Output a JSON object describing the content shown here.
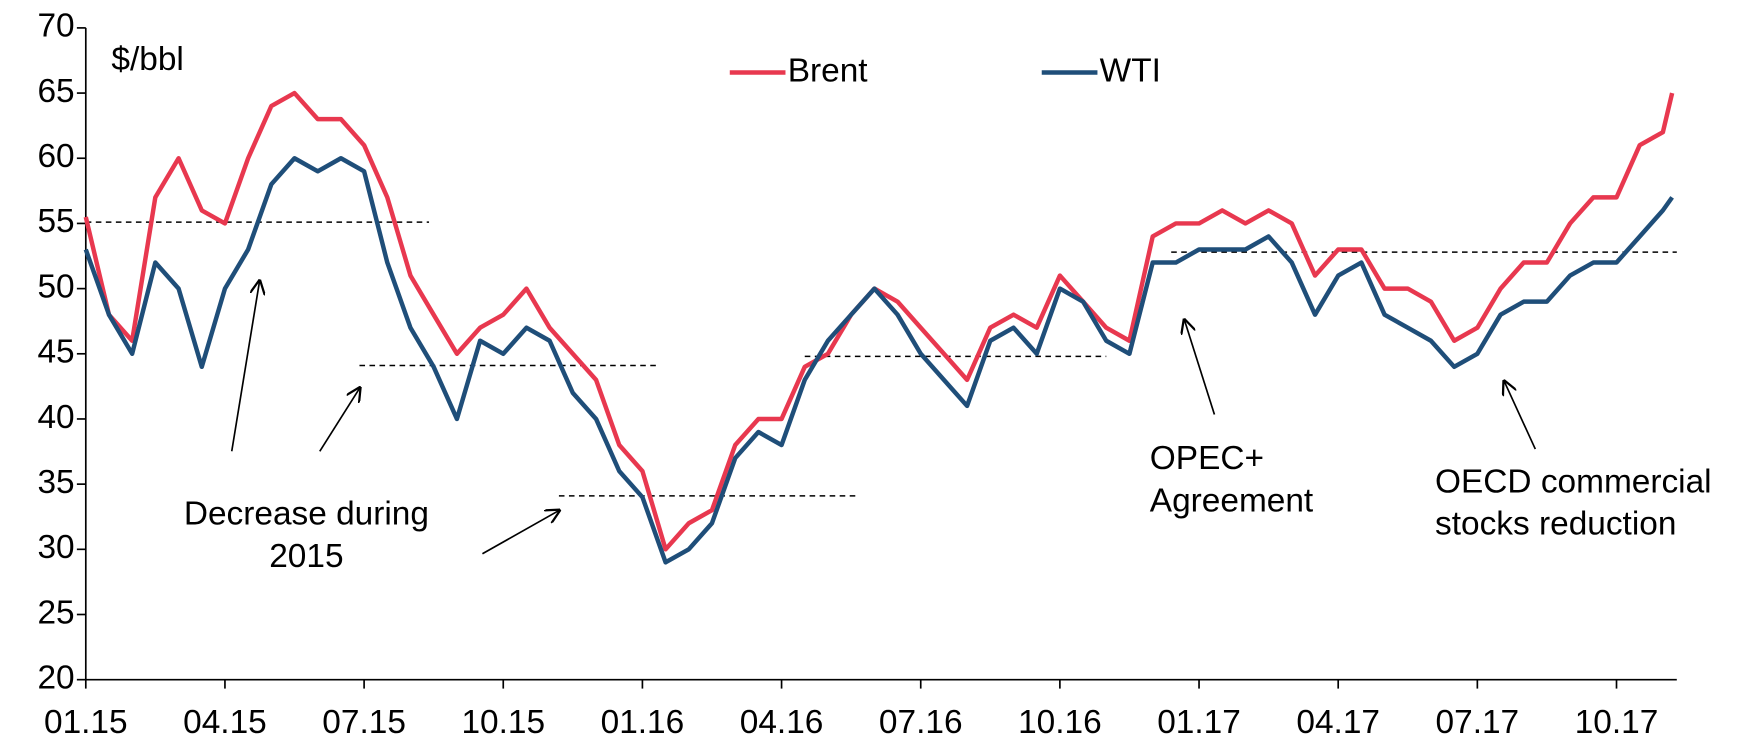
{
  "chart_data": {
    "type": "line",
    "y_label": "$/bbl",
    "x": [
      0,
      0.5,
      1,
      1.5,
      2,
      2.5,
      3,
      3.5,
      4,
      4.5,
      5,
      5.5,
      6,
      6.5,
      7,
      7.5,
      8,
      8.5,
      9,
      9.5,
      10,
      10.5,
      11,
      11.5,
      12,
      12.5,
      13,
      13.5,
      14,
      14.5,
      15,
      15.5,
      16,
      16.5,
      17,
      17.5,
      18,
      18.5,
      19,
      19.5,
      20,
      20.5,
      21,
      21.5,
      22,
      22.5,
      23,
      23.5,
      24,
      24.5,
      25,
      25.5,
      26,
      26.5,
      27,
      27.5,
      28,
      28.5,
      29,
      29.5,
      30,
      30.5,
      31,
      31.5,
      32,
      32.5,
      33,
      33.5,
      34,
      34.2
    ],
    "series": [
      {
        "name": "Brent",
        "color": "#e8384f",
        "values": [
          55.5,
          48,
          46,
          57,
          60,
          56,
          55,
          60,
          64,
          65,
          63,
          63,
          61,
          57,
          51,
          48,
          45,
          47,
          48,
          50,
          47,
          45,
          43,
          38,
          36,
          30,
          32,
          33,
          38,
          40,
          40,
          44,
          45,
          48,
          50,
          49,
          47,
          45,
          43,
          47,
          48,
          47,
          51,
          49,
          47,
          46,
          54,
          55,
          55,
          56,
          55,
          56,
          55,
          51,
          53,
          53,
          50,
          50,
          49,
          46,
          47,
          50,
          52,
          52,
          55,
          57,
          57,
          61,
          62,
          65
        ]
      },
      {
        "name": "WTI",
        "color": "#1f4e79",
        "values": [
          53,
          48,
          45,
          52,
          50,
          44,
          50,
          53,
          58,
          60,
          59,
          60,
          59,
          52,
          47,
          44,
          40,
          46,
          45,
          47,
          46,
          42,
          40,
          36,
          34,
          29,
          30,
          32,
          37,
          39,
          38,
          43,
          46,
          48,
          50,
          48,
          45,
          43,
          41,
          46,
          47,
          45,
          50,
          49,
          46,
          45,
          52,
          52,
          53,
          53,
          53,
          54,
          52,
          48,
          51,
          52,
          48,
          47,
          46,
          44,
          45,
          48,
          49,
          49,
          51,
          52,
          52,
          54,
          56,
          57
        ]
      }
    ],
    "xlim": [
      0,
      34.3
    ],
    "xticks": [
      {
        "value": 0,
        "label": "01.15"
      },
      {
        "value": 3,
        "label": "04.15"
      },
      {
        "value": 6,
        "label": "07.15"
      },
      {
        "value": 9,
        "label": "10.15"
      },
      {
        "value": 12,
        "label": "01.16"
      },
      {
        "value": 15,
        "label": "04.16"
      },
      {
        "value": 18,
        "label": "07.16"
      },
      {
        "value": 21,
        "label": "10.16"
      },
      {
        "value": 24,
        "label": "01.17"
      },
      {
        "value": 27,
        "label": "04.17"
      },
      {
        "value": 30,
        "label": "07.17"
      },
      {
        "value": 33,
        "label": "10.17"
      }
    ],
    "ylim": [
      20,
      70
    ],
    "yticks": [
      20,
      25,
      30,
      35,
      40,
      45,
      50,
      55,
      60,
      65,
      70
    ],
    "reference_lines": [
      {
        "value": 55.1,
        "x": [
          0,
          7.4
        ]
      },
      {
        "value": 44.1,
        "x": [
          5.9,
          12.3
        ]
      },
      {
        "value": 34.1,
        "x": [
          10.2,
          16.6
        ]
      },
      {
        "value": 44.8,
        "x": [
          15.5,
          22
        ]
      },
      {
        "value": 52.8,
        "x": [
          23.4,
          34.3
        ]
      }
    ],
    "annotations": [
      {
        "lines": [
          "Decrease during",
          "2015"
        ]
      },
      {
        "lines": [
          "OPEC+",
          "Agreement"
        ]
      },
      {
        "lines": [
          "OECD commercial",
          "stocks reduction"
        ]
      }
    ]
  }
}
